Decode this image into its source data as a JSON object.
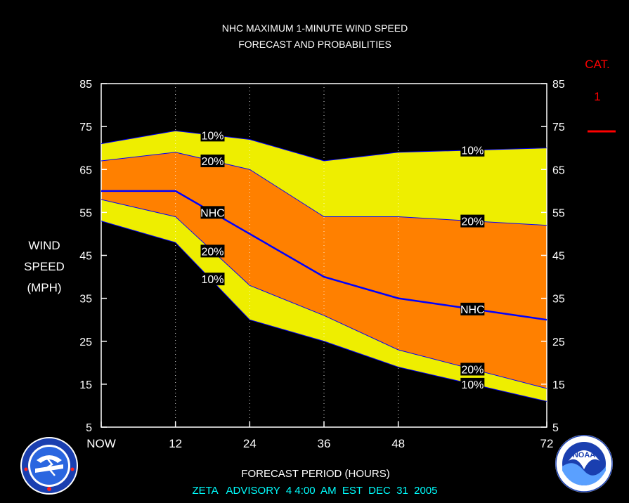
{
  "title_line1": "NHC MAXIMUM 1-MINUTE WIND SPEED",
  "title_line2": "FORECAST AND PROBABILITIES",
  "ylabel_line1": "WIND",
  "ylabel_line2": "SPEED",
  "ylabel_line3": "(MPH)",
  "xlabel": "FORECAST PERIOD (HOURS)",
  "advisory": "ZETA   ADVISORY  4 4:00  AM  EST  DEC  31  2005",
  "category": {
    "label": "CAT.",
    "value": "1",
    "color": "#ff0000"
  },
  "logos": {
    "left_icon": "nws-logo-icon",
    "right_icon": "noaa-logo-icon",
    "right_text": "NOAA"
  },
  "colors": {
    "outer_band": "#eeee00",
    "inner_band": "#ff8000",
    "nhc_line": "#0000ff",
    "axis": "#ffffff",
    "plot_bg": "#000000"
  },
  "chart_data": {
    "type": "area",
    "x": [
      0,
      12,
      24,
      36,
      48,
      72
    ],
    "x_tick_labels": [
      "NOW",
      "12",
      "24",
      "36",
      "48",
      "72"
    ],
    "xlim": [
      0,
      72
    ],
    "ylim": [
      5,
      85
    ],
    "y_ticks": [
      5,
      15,
      25,
      35,
      45,
      55,
      65,
      75,
      85
    ],
    "grid": "vertical-dotted",
    "series": [
      {
        "name": "10%",
        "values": [
          71,
          74,
          72,
          67,
          69,
          70
        ]
      },
      {
        "name": "20%",
        "values": [
          67,
          69,
          65,
          54,
          54,
          52
        ]
      },
      {
        "name": "NHC",
        "values": [
          60,
          60,
          50,
          40,
          35,
          30
        ]
      },
      {
        "name": "20%",
        "values": [
          58,
          54,
          38,
          31,
          23,
          14
        ]
      },
      {
        "name": "10%",
        "values": [
          53,
          48,
          30,
          25,
          19,
          11
        ]
      }
    ],
    "line_labels": [
      {
        "text": "10%",
        "x": 18,
        "y": 73
      },
      {
        "text": "20%",
        "x": 18,
        "y": 67
      },
      {
        "text": "NHC",
        "x": 18,
        "y": 55
      },
      {
        "text": "20%",
        "x": 18,
        "y": 46
      },
      {
        "text": "10%",
        "x": 18,
        "y": 39.5
      },
      {
        "text": "10%",
        "x": 60,
        "y": 69.5
      },
      {
        "text": "20%",
        "x": 60,
        "y": 53
      },
      {
        "text": "NHC",
        "x": 60,
        "y": 32.5
      },
      {
        "text": "20%",
        "x": 60,
        "y": 18.5
      },
      {
        "text": "10%",
        "x": 60,
        "y": 15
      }
    ]
  }
}
